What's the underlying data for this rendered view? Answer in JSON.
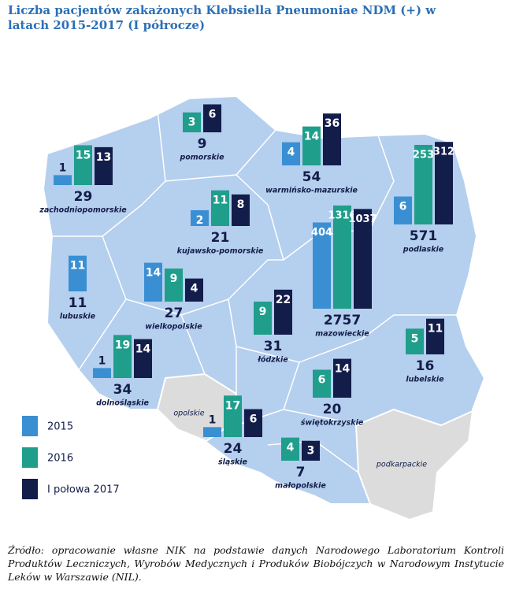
{
  "title": "Liczba pacjentów zakażonych Klebsiella Pneumoniae NDM (+) w latach 2015-2017 (I półrocze)",
  "legend": [
    {
      "label": "2015",
      "color": "#3a8fd3"
    },
    {
      "label": "2016",
      "color": "#1f9e8c"
    },
    {
      "label": "I połowa 2017",
      "color": "#131d4a"
    }
  ],
  "regions": [
    {
      "name": "zachodniopomorskie",
      "values": [
        1,
        15,
        13
      ],
      "total": 29
    },
    {
      "name": "pomorskie",
      "values": [
        null,
        3,
        6
      ],
      "total": 9
    },
    {
      "name": "warmińsko-mazurskie",
      "values": [
        4,
        14,
        36
      ],
      "total": 54
    },
    {
      "name": "podlaskie",
      "values": [
        6,
        253,
        312
      ],
      "total": 571
    },
    {
      "name": "kujawsko-pomorskie",
      "values": [
        2,
        11,
        8
      ],
      "total": 21
    },
    {
      "name": "lubuskie",
      "values": [
        11,
        null,
        null
      ],
      "total": 11
    },
    {
      "name": "wielkopolskie",
      "values": [
        14,
        9,
        4
      ],
      "total": 27
    },
    {
      "name": "mazowieckie",
      "values": [
        404,
        1316,
        1037
      ],
      "total": 2757
    },
    {
      "name": "łódzkie",
      "values": [
        null,
        9,
        22
      ],
      "total": 31
    },
    {
      "name": "lubelskie",
      "values": [
        null,
        5,
        11
      ],
      "total": 16
    },
    {
      "name": "dolnośląskie",
      "values": [
        1,
        19,
        14
      ],
      "total": 34
    },
    {
      "name": "świętokrzyskie",
      "values": [
        null,
        6,
        14
      ],
      "total": 20
    },
    {
      "name": "śląskie",
      "values": [
        1,
        17,
        6
      ],
      "total": 24
    },
    {
      "name": "małopolskie",
      "values": [
        null,
        4,
        3
      ],
      "total": 7
    }
  ],
  "grey_regions": [
    "opolskie",
    "podkarpackie"
  ],
  "source": "Źródło: opracowanie własne NIK na podstawie danych Narodowego Laboratorium Kontroli Produktów Leczniczych, Wyrobów Medycznych i Produków Biobójczych w Narodowym Instytucie Leków w Warszawie (NIL)."
}
